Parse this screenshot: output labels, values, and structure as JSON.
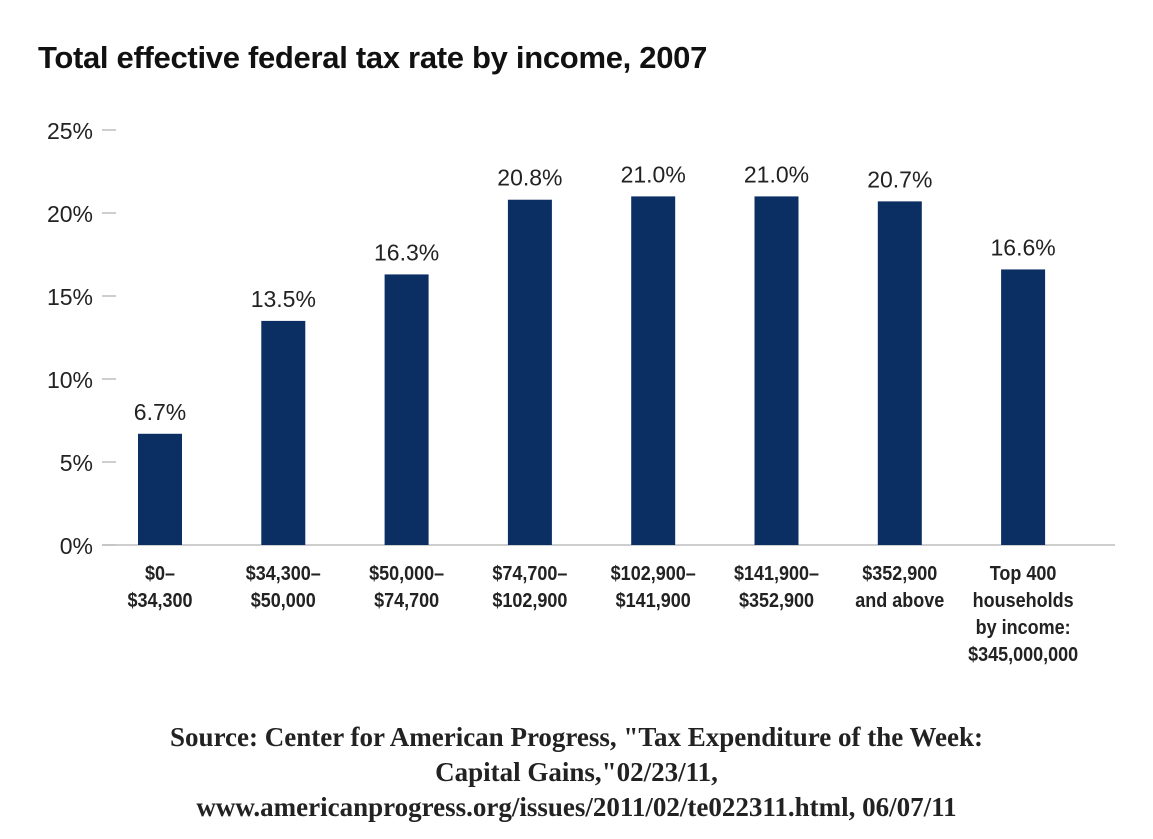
{
  "chart_data": {
    "type": "bar",
    "title": "Total effective federal tax rate by income, 2007",
    "xlabel": "",
    "ylabel": "",
    "ylim": [
      0,
      25
    ],
    "y_ticks": [
      "0%",
      "5%",
      "10%",
      "15%",
      "20%",
      "25%"
    ],
    "y_tick_values": [
      0,
      5,
      10,
      15,
      20,
      25
    ],
    "grid": false,
    "legend": "none",
    "bar_color": "#0b2f63",
    "categories": [
      [
        "$0–",
        "$34,300"
      ],
      [
        "$34,300–",
        "$50,000"
      ],
      [
        "$50,000–",
        "$74,700"
      ],
      [
        "$74,700–",
        "$102,900"
      ],
      [
        "$102,900–",
        "$141,900"
      ],
      [
        "$141,900–",
        "$352,900"
      ],
      [
        "$352,900",
        "and above"
      ],
      [
        "Top 400",
        "households",
        "by income:",
        "$345,000,000"
      ]
    ],
    "values": [
      6.7,
      13.5,
      16.3,
      20.8,
      21.0,
      21.0,
      20.7,
      16.6
    ],
    "value_labels": [
      "6.7%",
      "13.5%",
      "16.3%",
      "20.8%",
      "21.0%",
      "21.0%",
      "20.7%",
      "16.6%"
    ]
  },
  "source": {
    "lines": [
      "Source: Center for American Progress, \"Tax Expenditure of the Week:",
      "Capital Gains,\"02/23/11,",
      "www.americanprogress.org/issues/2011/02/te022311.html, 06/07/11"
    ]
  }
}
